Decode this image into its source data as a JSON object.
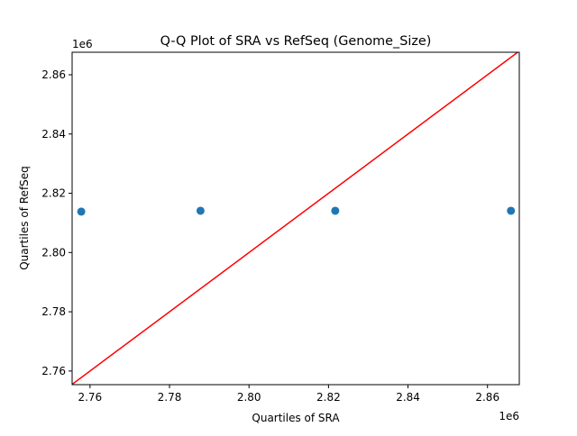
{
  "chart_data": {
    "type": "scatter",
    "title": "Q-Q Plot of SRA vs RefSeq (Genome_Size)",
    "xlabel": "Quartiles of SRA",
    "ylabel": "Quartiles of RefSeq",
    "x_offset_label": "1e6",
    "y_offset_label": "1e6",
    "xlim": [
      2.7555,
      2.868
    ],
    "ylim": [
      2.7554,
      2.8676
    ],
    "xticks": [
      2.76,
      2.78,
      2.8,
      2.82,
      2.84,
      2.86
    ],
    "xtick_labels": [
      "2.76",
      "2.78",
      "2.80",
      "2.82",
      "2.84",
      "2.86"
    ],
    "yticks": [
      2.76,
      2.78,
      2.8,
      2.82,
      2.84,
      2.86
    ],
    "ytick_labels": [
      "2.76",
      "2.78",
      "2.80",
      "2.82",
      "2.84",
      "2.86"
    ],
    "grid": false,
    "points": {
      "x": [
        2.7578,
        2.7878,
        2.8217,
        2.8659
      ],
      "y": [
        2.8138,
        2.8141,
        2.8141,
        2.8141
      ],
      "color": "#1f77b4"
    },
    "reference_line": {
      "type": "y=x",
      "color": "#ff0000"
    }
  }
}
